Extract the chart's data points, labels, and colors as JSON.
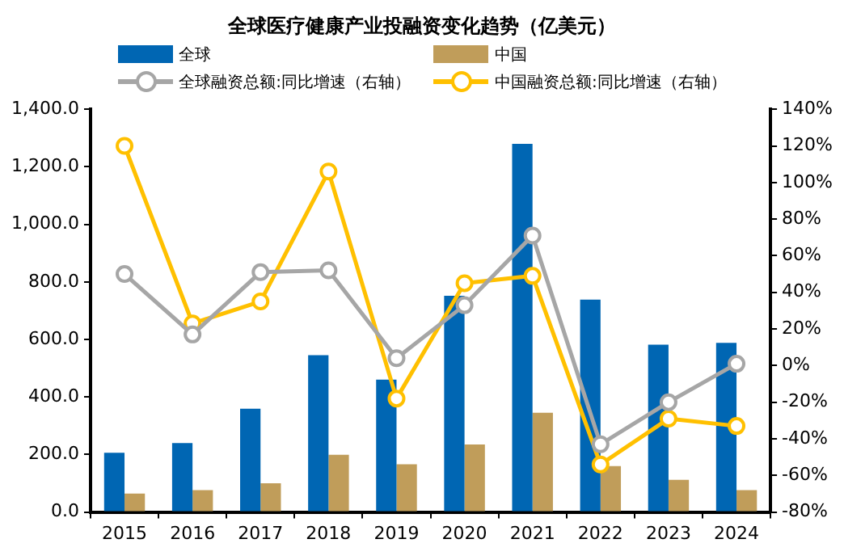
{
  "chart_data": {
    "type": "bar",
    "title": "全球医疗健康产业投融资变化趋势（亿美元）",
    "categories": [
      "2015",
      "2016",
      "2017",
      "2018",
      "2019",
      "2020",
      "2021",
      "2022",
      "2023",
      "2024"
    ],
    "series": [
      {
        "name": "全球",
        "color": "#0066b3",
        "values": [
          206,
          240,
          359,
          545,
          460,
          752,
          1280,
          738,
          582,
          588
        ]
      },
      {
        "name": "中国",
        "color": "#c09d5a",
        "values": [
          64,
          76,
          100,
          199,
          166,
          235,
          345,
          160,
          112,
          76
        ]
      },
      {
        "name": "全球融资总额:同比增速（右轴）",
        "type": "line",
        "axis": "y2",
        "color": "#a6a6a6",
        "values": [
          50,
          17,
          51,
          52,
          4,
          33,
          71,
          -43,
          -20,
          1
        ]
      },
      {
        "name": "中国融资总额:同比增速（右轴）",
        "type": "line",
        "axis": "y2",
        "color": "#ffc000",
        "values": [
          120,
          23,
          35,
          106,
          -18,
          45,
          49,
          -54,
          -29,
          -33
        ]
      }
    ],
    "ylim": [
      0,
      1400
    ],
    "yticks": [
      {
        "value": 0,
        "label": "0.0"
      },
      {
        "value": 200,
        "label": "200.0"
      },
      {
        "value": 400,
        "label": "400.0"
      },
      {
        "value": 600,
        "label": "600.0"
      },
      {
        "value": 800,
        "label": "800.0"
      },
      {
        "value": 1000,
        "label": "1,000.0"
      },
      {
        "value": 1200,
        "label": "1,200.0"
      },
      {
        "value": 1400,
        "label": "1,400.0"
      }
    ],
    "y2lim": [
      -80,
      140
    ],
    "y2ticks": [
      {
        "value": -80,
        "label": "-80%"
      },
      {
        "value": -60,
        "label": "-60%"
      },
      {
        "value": -40,
        "label": "-40%"
      },
      {
        "value": -20,
        "label": "-20%"
      },
      {
        "value": 0,
        "label": "0%"
      },
      {
        "value": 20,
        "label": "20%"
      },
      {
        "value": 40,
        "label": "40%"
      },
      {
        "value": 60,
        "label": "60%"
      },
      {
        "value": 80,
        "label": "80%"
      },
      {
        "value": 100,
        "label": "100%"
      },
      {
        "value": 120,
        "label": "120%"
      },
      {
        "value": 140,
        "label": "140%"
      }
    ],
    "grid": false,
    "legend": "top",
    "marker": "circle"
  }
}
